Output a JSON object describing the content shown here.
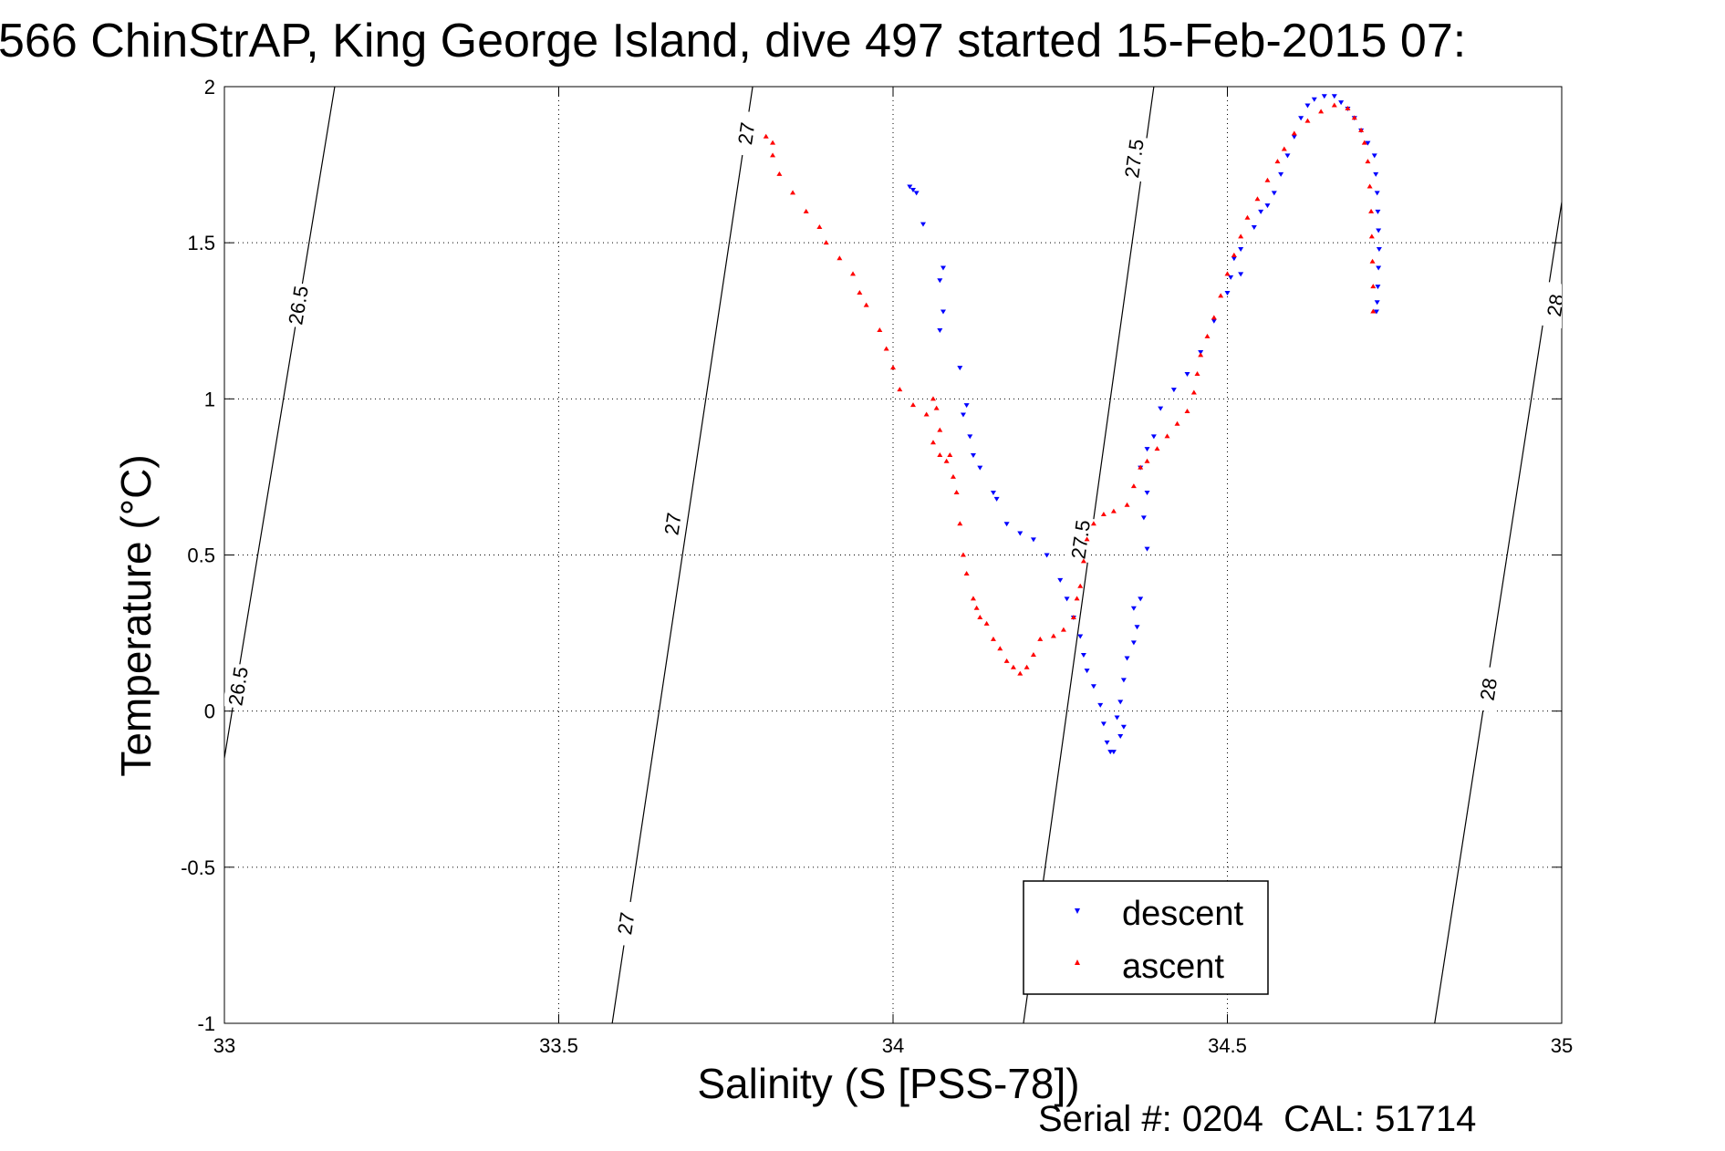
{
  "chart_data": {
    "type": "scatter",
    "title": "566 ChinStrAP, King George Island, dive 497 started 15-Feb-2015 07:",
    "xlabel": "Salinity (S [PSS-78])",
    "ylabel": "Temperature (°C)",
    "xlim": [
      33,
      35
    ],
    "ylim": [
      -1,
      2
    ],
    "xticks": [
      "33",
      "33.5",
      "34",
      "34.5",
      "35"
    ],
    "yticks": [
      "-1",
      "-0.5",
      "0",
      "0.5",
      "1",
      "1.5",
      "2"
    ],
    "grid": true,
    "legend": {
      "position": "bottom-right",
      "entries": [
        "descent",
        "ascent"
      ]
    },
    "footer": "Serial #: 0204  CAL: 51714",
    "density_contours": [
      {
        "label": "26.5",
        "points": [
          [
            33.0,
            -0.15
          ],
          [
            33.165,
            2.0
          ]
        ],
        "labels_at": [
          [
            33.02,
            0.08
          ],
          [
            33.11,
            1.3
          ]
        ]
      },
      {
        "label": "27",
        "points": [
          [
            33.58,
            -1.0
          ],
          [
            33.79,
            2.0
          ]
        ],
        "labels_at": [
          [
            33.6,
            -0.68
          ],
          [
            33.67,
            0.6
          ],
          [
            33.78,
            1.85
          ]
        ]
      },
      {
        "label": "27.5",
        "points": [
          [
            34.195,
            -1.0
          ],
          [
            34.39,
            2.0
          ]
        ],
        "labels_at": [
          [
            34.28,
            0.55
          ],
          [
            34.36,
            1.77
          ]
        ]
      },
      {
        "label": "28",
        "points": [
          [
            34.81,
            -1.0
          ],
          [
            35.0,
            1.63
          ]
        ],
        "labels_at": [
          [
            34.89,
            0.07
          ],
          [
            34.99,
            1.3
          ]
        ]
      }
    ],
    "series": [
      {
        "name": "descent",
        "color": "#0000ff",
        "marker": "triangle-down",
        "points": [
          [
            34.025,
            1.68
          ],
          [
            34.03,
            1.67
          ],
          [
            34.035,
            1.66
          ],
          [
            34.045,
            1.56
          ],
          [
            34.075,
            1.42
          ],
          [
            34.07,
            1.38
          ],
          [
            34.075,
            1.28
          ],
          [
            34.07,
            1.22
          ],
          [
            34.1,
            1.1
          ],
          [
            34.11,
            0.98
          ],
          [
            34.105,
            0.95
          ],
          [
            34.115,
            0.88
          ],
          [
            34.12,
            0.82
          ],
          [
            34.13,
            0.78
          ],
          [
            34.15,
            0.7
          ],
          [
            34.155,
            0.68
          ],
          [
            34.17,
            0.6
          ],
          [
            34.19,
            0.57
          ],
          [
            34.21,
            0.55
          ],
          [
            34.23,
            0.5
          ],
          [
            34.25,
            0.42
          ],
          [
            34.26,
            0.36
          ],
          [
            34.27,
            0.3
          ],
          [
            34.28,
            0.24
          ],
          [
            34.285,
            0.18
          ],
          [
            34.29,
            0.13
          ],
          [
            34.3,
            0.08
          ],
          [
            34.31,
            0.02
          ],
          [
            34.315,
            -0.04
          ],
          [
            34.32,
            -0.1
          ],
          [
            34.325,
            -0.13
          ],
          [
            34.33,
            -0.13
          ],
          [
            34.34,
            -0.08
          ],
          [
            34.345,
            -0.05
          ],
          [
            34.335,
            -0.02
          ],
          [
            34.34,
            0.03
          ],
          [
            34.345,
            0.1
          ],
          [
            34.35,
            0.17
          ],
          [
            34.36,
            0.22
          ],
          [
            34.365,
            0.27
          ],
          [
            34.36,
            0.33
          ],
          [
            34.37,
            0.36
          ],
          [
            34.38,
            0.52
          ],
          [
            34.375,
            0.62
          ],
          [
            34.38,
            0.7
          ],
          [
            34.37,
            0.78
          ],
          [
            34.38,
            0.84
          ],
          [
            34.39,
            0.88
          ],
          [
            34.4,
            0.97
          ],
          [
            34.42,
            1.03
          ],
          [
            34.44,
            1.08
          ],
          [
            34.46,
            1.15
          ],
          [
            34.48,
            1.25
          ],
          [
            34.5,
            1.34
          ],
          [
            34.52,
            1.4
          ],
          [
            34.505,
            1.39
          ],
          [
            34.51,
            1.45
          ],
          [
            34.52,
            1.48
          ],
          [
            34.54,
            1.55
          ],
          [
            34.55,
            1.6
          ],
          [
            34.56,
            1.62
          ],
          [
            34.57,
            1.66
          ],
          [
            34.58,
            1.72
          ],
          [
            34.59,
            1.78
          ],
          [
            34.6,
            1.84
          ],
          [
            34.61,
            1.9
          ],
          [
            34.62,
            1.94
          ],
          [
            34.63,
            1.96
          ],
          [
            34.645,
            1.97
          ],
          [
            34.66,
            1.97
          ],
          [
            34.67,
            1.95
          ],
          [
            34.68,
            1.93
          ],
          [
            34.69,
            1.9
          ],
          [
            34.7,
            1.86
          ],
          [
            34.71,
            1.82
          ],
          [
            34.72,
            1.78
          ],
          [
            34.722,
            1.72
          ],
          [
            34.724,
            1.66
          ],
          [
            34.725,
            1.6
          ],
          [
            34.726,
            1.54
          ],
          [
            34.727,
            1.48
          ],
          [
            34.726,
            1.42
          ],
          [
            34.725,
            1.36
          ],
          [
            34.724,
            1.31
          ],
          [
            34.723,
            1.28
          ]
        ]
      },
      {
        "name": "ascent",
        "color": "#ff0000",
        "marker": "triangle-up",
        "points": [
          [
            33.81,
            1.84
          ],
          [
            33.82,
            1.82
          ],
          [
            33.82,
            1.78
          ],
          [
            33.83,
            1.72
          ],
          [
            33.85,
            1.66
          ],
          [
            33.87,
            1.6
          ],
          [
            33.89,
            1.55
          ],
          [
            33.9,
            1.5
          ],
          [
            33.92,
            1.45
          ],
          [
            33.94,
            1.4
          ],
          [
            33.95,
            1.34
          ],
          [
            33.96,
            1.3
          ],
          [
            33.98,
            1.22
          ],
          [
            33.99,
            1.16
          ],
          [
            34.0,
            1.1
          ],
          [
            34.01,
            1.03
          ],
          [
            34.03,
            0.98
          ],
          [
            34.05,
            0.95
          ],
          [
            34.065,
            0.97
          ],
          [
            34.06,
            1.0
          ],
          [
            34.07,
            0.9
          ],
          [
            34.06,
            0.86
          ],
          [
            34.07,
            0.82
          ],
          [
            34.08,
            0.8
          ],
          [
            34.085,
            0.82
          ],
          [
            34.09,
            0.75
          ],
          [
            34.095,
            0.7
          ],
          [
            34.1,
            0.6
          ],
          [
            34.105,
            0.5
          ],
          [
            34.11,
            0.44
          ],
          [
            34.12,
            0.36
          ],
          [
            34.125,
            0.33
          ],
          [
            34.13,
            0.3
          ],
          [
            34.14,
            0.28
          ],
          [
            34.15,
            0.23
          ],
          [
            34.16,
            0.2
          ],
          [
            34.17,
            0.16
          ],
          [
            34.18,
            0.14
          ],
          [
            34.19,
            0.12
          ],
          [
            34.2,
            0.14
          ],
          [
            34.21,
            0.18
          ],
          [
            34.22,
            0.23
          ],
          [
            34.24,
            0.24
          ],
          [
            34.255,
            0.26
          ],
          [
            34.27,
            0.3
          ],
          [
            34.275,
            0.36
          ],
          [
            34.28,
            0.4
          ],
          [
            34.285,
            0.48
          ],
          [
            34.29,
            0.55
          ],
          [
            34.3,
            0.6
          ],
          [
            34.315,
            0.63
          ],
          [
            34.33,
            0.64
          ],
          [
            34.35,
            0.66
          ],
          [
            34.36,
            0.72
          ],
          [
            34.37,
            0.78
          ],
          [
            34.38,
            0.8
          ],
          [
            34.395,
            0.84
          ],
          [
            34.41,
            0.88
          ],
          [
            34.425,
            0.92
          ],
          [
            34.44,
            0.96
          ],
          [
            34.45,
            1.02
          ],
          [
            34.455,
            1.08
          ],
          [
            34.46,
            1.14
          ],
          [
            34.47,
            1.2
          ],
          [
            34.48,
            1.26
          ],
          [
            34.49,
            1.33
          ],
          [
            34.5,
            1.4
          ],
          [
            34.51,
            1.46
          ],
          [
            34.52,
            1.52
          ],
          [
            34.53,
            1.58
          ],
          [
            34.545,
            1.64
          ],
          [
            34.56,
            1.7
          ],
          [
            34.575,
            1.76
          ],
          [
            34.585,
            1.8
          ],
          [
            34.6,
            1.85
          ],
          [
            34.62,
            1.89
          ],
          [
            34.64,
            1.92
          ],
          [
            34.66,
            1.94
          ],
          [
            34.68,
            1.93
          ],
          [
            34.69,
            1.9
          ],
          [
            34.7,
            1.86
          ],
          [
            34.705,
            1.82
          ],
          [
            34.71,
            1.76
          ],
          [
            34.713,
            1.68
          ],
          [
            34.715,
            1.6
          ],
          [
            34.716,
            1.52
          ],
          [
            34.717,
            1.44
          ],
          [
            34.718,
            1.36
          ],
          [
            34.718,
            1.28
          ]
        ]
      }
    ]
  }
}
